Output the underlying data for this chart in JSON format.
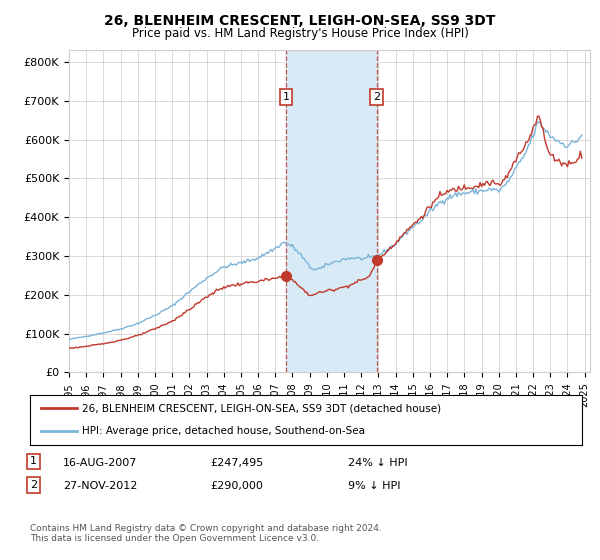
{
  "title": "26, BLENHEIM CRESCENT, LEIGH-ON-SEA, SS9 3DT",
  "subtitle": "Price paid vs. HM Land Registry's House Price Index (HPI)",
  "legend_line1": "26, BLENHEIM CRESCENT, LEIGH-ON-SEA, SS9 3DT (detached house)",
  "legend_line2": "HPI: Average price, detached house, Southend-on-Sea",
  "footnote": "Contains HM Land Registry data © Crown copyright and database right 2024.\nThis data is licensed under the Open Government Licence v3.0.",
  "sale1_date": "16-AUG-2007",
  "sale1_price": "£247,495",
  "sale1_hpi": "24% ↓ HPI",
  "sale1_date_val": 2007.62,
  "sale1_price_val": 247495,
  "sale2_date": "27-NOV-2012",
  "sale2_price": "£290,000",
  "sale2_hpi": "9% ↓ HPI",
  "sale2_date_val": 2012.9,
  "sale2_price_val": 290000,
  "ylim": [
    0,
    830000
  ],
  "xlim_left": 1995.0,
  "xlim_right": 2025.3,
  "hpi_color": "#7ab4d8",
  "sold_color": "#c0392b",
  "background_color": "#ffffff",
  "grid_color": "#cccccc",
  "highlight_color": "#d8eaf5"
}
